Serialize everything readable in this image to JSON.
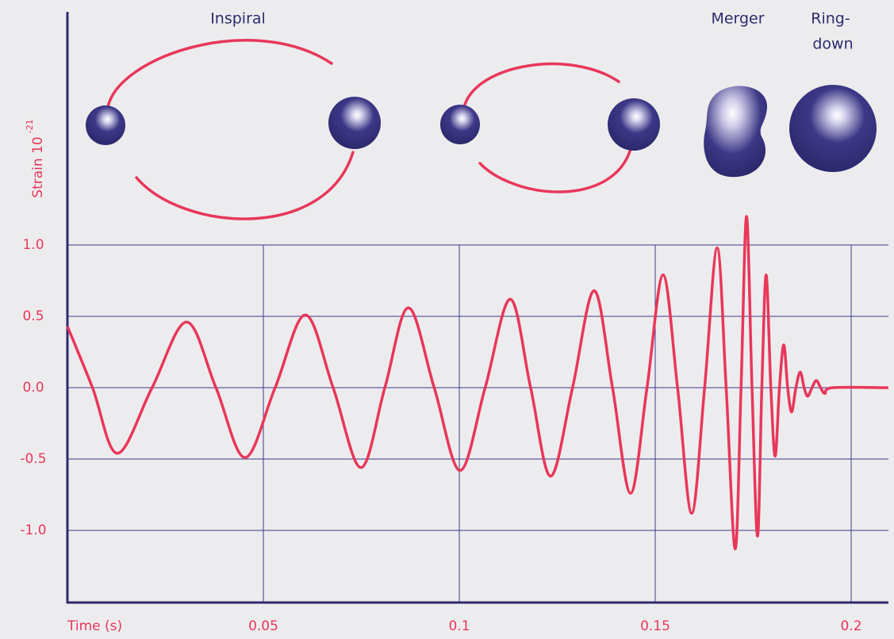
{
  "chart_data": {
    "type": "line",
    "x_label": "Time (s)",
    "y_label": "Strain 10",
    "y_label_exponent": "-21",
    "annotations": [
      [
        "Inspiral"
      ],
      [
        "Merger"
      ],
      [
        "Ring-",
        "down"
      ]
    ],
    "x": [
      0,
      0.0064,
      0.01275,
      0.0216,
      0.0304,
      0.0379,
      0.0453,
      0.053,
      0.0607,
      0.0678,
      0.0749,
      0.081,
      0.087,
      0.0936,
      0.1002,
      0.1066,
      0.113,
      0.1182,
      0.1233,
      0.1289,
      0.1344,
      0.1391,
      0.1437,
      0.1479,
      0.152,
      0.1557,
      0.1593,
      0.1626,
      0.1658,
      0.1681,
      0.1704,
      0.1719,
      0.1733,
      0.1747,
      0.1761,
      0.1772,
      0.1783,
      0.1795,
      0.1806,
      0.1817,
      0.1828,
      0.1838,
      0.1848,
      0.1859,
      0.187,
      0.188,
      0.1889,
      0.19,
      0.1911,
      0.1922,
      0.1933,
      0.1953,
      0.2095
    ],
    "values": [
      0.43,
      0,
      -0.46,
      0,
      0.46,
      0,
      -0.49,
      0,
      0.51,
      0,
      -0.56,
      0,
      0.56,
      0,
      -0.58,
      0,
      0.62,
      0,
      -0.62,
      0,
      0.68,
      0,
      -0.74,
      0,
      0.79,
      0,
      -0.88,
      0,
      0.98,
      0,
      -1.13,
      0,
      1.2,
      0,
      -1.04,
      0,
      0.79,
      0,
      -0.48,
      0,
      0.3,
      0,
      -0.17,
      0,
      0.11,
      0,
      -0.06,
      0,
      0.05,
      0,
      -0.04,
      0,
      0
    ],
    "color": "#e8375a",
    "xlim": [
      0,
      0.21
    ],
    "xticks": [
      0.05,
      0.1,
      0.15,
      0.2
    ],
    "ylim": [
      -1.5,
      2.7
    ],
    "yticks": [
      {
        "value": 1,
        "label": "1.0"
      },
      0.5,
      {
        "value": 0,
        "label": "0.0"
      },
      -0.5,
      {
        "value": -1,
        "label": "-1.0"
      }
    ],
    "grid": true
  }
}
